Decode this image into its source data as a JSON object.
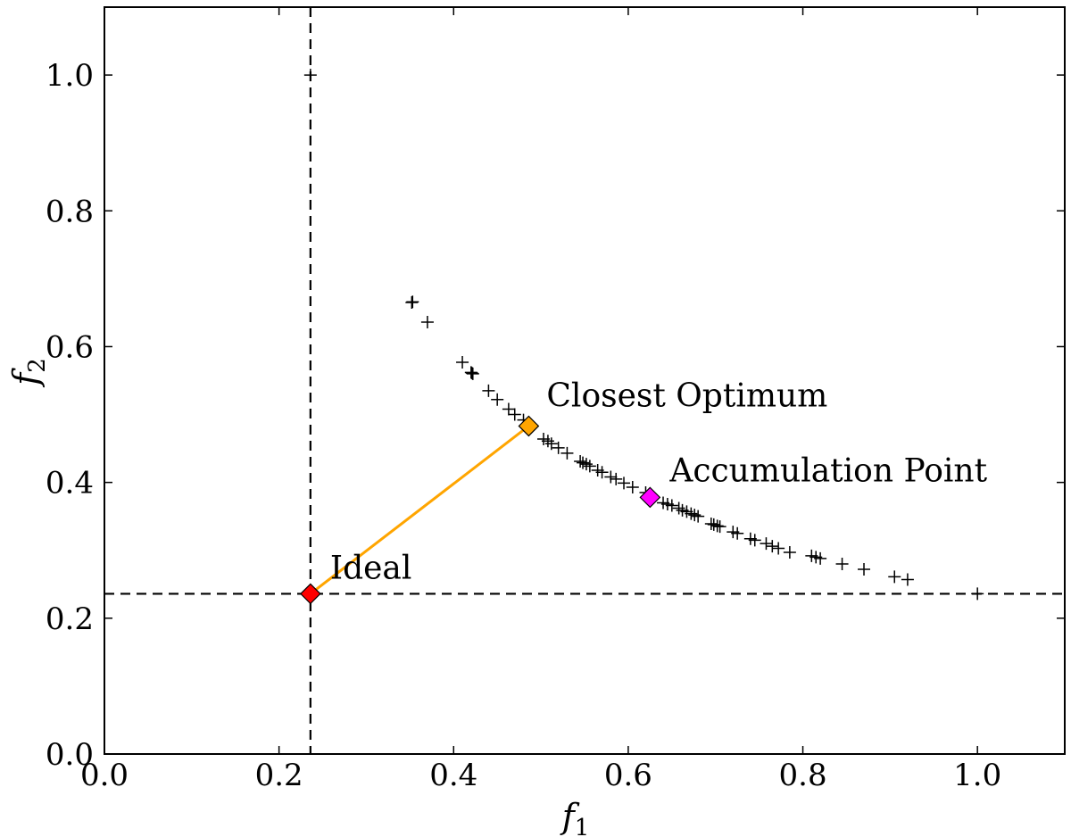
{
  "chart_data": {
    "type": "scatter",
    "xlabel": "f",
    "xlabel_subscript": "1",
    "ylabel": "f",
    "ylabel_subscript": "2",
    "xlim": [
      0.0,
      1.1
    ],
    "ylim": [
      0.0,
      1.1
    ],
    "xticks": [
      0.0,
      0.2,
      0.4,
      0.6,
      0.8,
      1.0
    ],
    "yticks": [
      0.0,
      0.2,
      0.4,
      0.6,
      0.8,
      1.0
    ],
    "xtick_labels": [
      "0.0",
      "0.2",
      "0.4",
      "0.6",
      "0.8",
      "1.0"
    ],
    "ytick_labels": [
      "0.0",
      "0.2",
      "0.4",
      "0.6",
      "0.8",
      "1.0"
    ],
    "grid": false,
    "marker": "+",
    "marker_color": "#000000",
    "points": [
      [
        0.236,
        1.0
      ],
      [
        0.352,
        0.665
      ],
      [
        0.353,
        0.666
      ],
      [
        0.37,
        0.636
      ],
      [
        0.41,
        0.577
      ],
      [
        0.42,
        0.562
      ],
      [
        0.421,
        0.561
      ],
      [
        0.422,
        0.56
      ],
      [
        0.44,
        0.535
      ],
      [
        0.45,
        0.522
      ],
      [
        0.463,
        0.508
      ],
      [
        0.47,
        0.5
      ],
      [
        0.48,
        0.492
      ],
      [
        0.503,
        0.464
      ],
      [
        0.508,
        0.461
      ],
      [
        0.512,
        0.457
      ],
      [
        0.52,
        0.451
      ],
      [
        0.53,
        0.443
      ],
      [
        0.545,
        0.431
      ],
      [
        0.548,
        0.429
      ],
      [
        0.552,
        0.427
      ],
      [
        0.556,
        0.424
      ],
      [
        0.565,
        0.418
      ],
      [
        0.57,
        0.415
      ],
      [
        0.58,
        0.408
      ],
      [
        0.586,
        0.405
      ],
      [
        0.595,
        0.399
      ],
      [
        0.605,
        0.393
      ],
      [
        0.62,
        0.385
      ],
      [
        0.64,
        0.37
      ],
      [
        0.645,
        0.368
      ],
      [
        0.65,
        0.366
      ],
      [
        0.658,
        0.362
      ],
      [
        0.662,
        0.359
      ],
      [
        0.667,
        0.357
      ],
      [
        0.672,
        0.354
      ],
      [
        0.676,
        0.352
      ],
      [
        0.68,
        0.35
      ],
      [
        0.695,
        0.339
      ],
      [
        0.698,
        0.338
      ],
      [
        0.702,
        0.336
      ],
      [
        0.705,
        0.335
      ],
      [
        0.72,
        0.327
      ],
      [
        0.725,
        0.325
      ],
      [
        0.74,
        0.317
      ],
      [
        0.745,
        0.315
      ],
      [
        0.758,
        0.31
      ],
      [
        0.765,
        0.306
      ],
      [
        0.772,
        0.303
      ],
      [
        0.785,
        0.297
      ],
      [
        0.81,
        0.292
      ],
      [
        0.815,
        0.29
      ],
      [
        0.82,
        0.288
      ],
      [
        0.845,
        0.28
      ],
      [
        0.87,
        0.272
      ],
      [
        0.905,
        0.261
      ],
      [
        0.92,
        0.257
      ],
      [
        1.0,
        0.236
      ]
    ],
    "ideal": {
      "x": 0.236,
      "y": 0.236,
      "label": "Ideal",
      "color": "#ff0000"
    },
    "closest_optimum": {
      "x": 0.486,
      "y": 0.483,
      "label": "Closest Optimum",
      "color": "#ffa500"
    },
    "accumulation_point": {
      "x": 0.625,
      "y": 0.378,
      "label": "Accumulation Point",
      "color": "#ff00ff"
    },
    "connector_line_color": "#ffa500",
    "reference_lines": {
      "x": 0.236,
      "y": 0.236,
      "style": "dashed",
      "color": "#000000"
    }
  }
}
